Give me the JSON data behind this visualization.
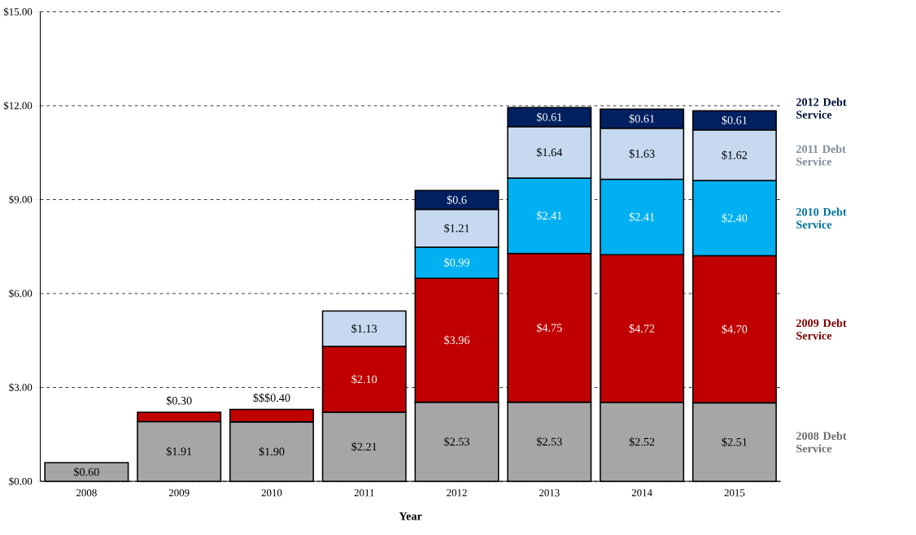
{
  "chart_data": {
    "type": "bar",
    "stacked": true,
    "xlabel": "Year",
    "categories": [
      "2008",
      "2009",
      "2010",
      "2011",
      "2012",
      "2013",
      "2014",
      "2015"
    ],
    "series": [
      {
        "name": "2008 Debt Service",
        "color": "#a6a6a6",
        "values": [
          0.6,
          1.91,
          1.9,
          2.21,
          2.53,
          2.53,
          2.52,
          2.51
        ],
        "value_labels": [
          "$0.60",
          "$1.91",
          "$1.90",
          "$2.21",
          "$2.53",
          "$2.53",
          "$2.52",
          "$2.51"
        ]
      },
      {
        "name": "2009 Debt Service",
        "color": "#c00000",
        "values": [
          null,
          0.3,
          0.4,
          2.1,
          3.96,
          4.75,
          4.72,
          4.7
        ],
        "value_labels": [
          null,
          "$0.30",
          "$$$0.40",
          "$2.10",
          "$3.96",
          "$4.75",
          "$4.72",
          "$4.70"
        ]
      },
      {
        "name": "2010 Debt Service",
        "color": "#00b0f0",
        "values": [
          null,
          null,
          null,
          null,
          0.99,
          2.41,
          2.41,
          2.4
        ],
        "value_labels": [
          null,
          null,
          null,
          null,
          "$0.99",
          "$2.41",
          "$2.41",
          "$2.40"
        ]
      },
      {
        "name": "2011 Debt Service",
        "color": "#c6d9f1",
        "values": [
          null,
          null,
          null,
          1.13,
          1.21,
          1.64,
          1.63,
          1.62
        ],
        "value_labels": [
          null,
          null,
          null,
          "$1.13",
          "$1.21",
          "$1.64",
          "$1.63",
          "$1.62"
        ]
      },
      {
        "name": "2012 Debt Service",
        "color": "#002060",
        "values": [
          null,
          null,
          null,
          null,
          0.6,
          0.61,
          0.61,
          0.61
        ],
        "value_labels": [
          null,
          null,
          null,
          null,
          "$0.6",
          "$0.61",
          "$0.61",
          "$0.61"
        ]
      }
    ],
    "ylim": [
      0,
      15
    ],
    "yticks": [
      {
        "value": 0,
        "label": "$0.00"
      },
      {
        "value": 3,
        "label": "$3.00"
      },
      {
        "value": 6,
        "label": "$6.00"
      },
      {
        "value": 9,
        "label": "$9.00"
      },
      {
        "value": 12,
        "label": "$12.00"
      },
      {
        "value": 15,
        "label": "$15.00"
      }
    ],
    "grid": "y"
  }
}
